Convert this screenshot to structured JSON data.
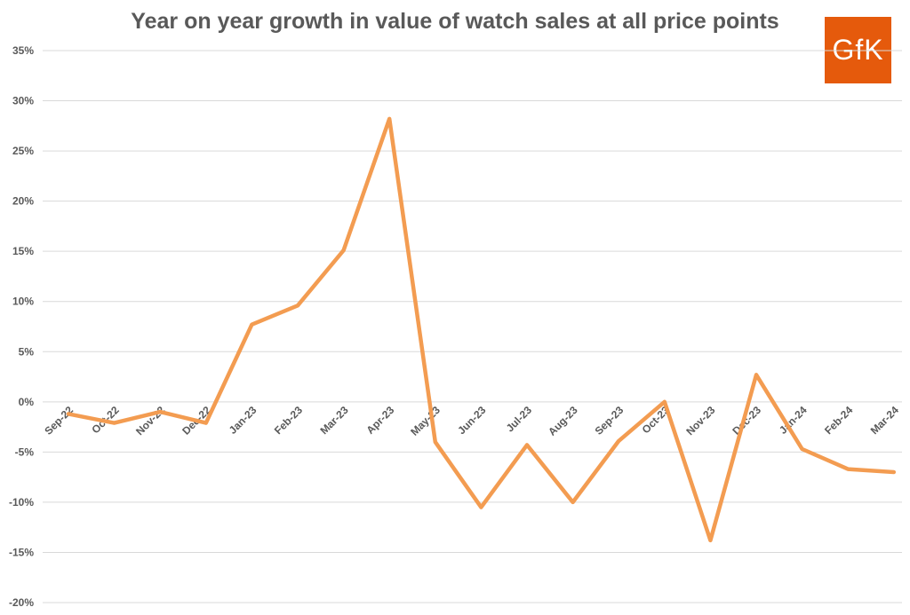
{
  "chart_data": {
    "type": "line",
    "title": "Year on year growth in value of watch sales at all price points",
    "xlabel": "",
    "ylabel": "",
    "ylim": [
      -20,
      35
    ],
    "yticks": [
      35,
      30,
      25,
      20,
      15,
      10,
      5,
      0,
      -5,
      -10,
      -15,
      -20
    ],
    "ytick_suffix": "%",
    "grid": true,
    "legend": "none",
    "line_color": "#f39c51",
    "categories": [
      "Sep-22",
      "Oct-22",
      "Nov-22",
      "Dec-22",
      "Jan-23",
      "Feb-23",
      "Mar-23",
      "Apr-23",
      "May-23",
      "Jun-23",
      "Jul-23",
      "Aug-23",
      "Sep-23",
      "Oct-23",
      "Nov-23",
      "Dec-23",
      "Jan-24",
      "Feb-24",
      "Mar-24"
    ],
    "series": [
      {
        "values": [
          -1.2,
          -2.1,
          -1.0,
          -2.1,
          7.7,
          9.6,
          15.1,
          28.2,
          -4.0,
          -10.5,
          -4.3,
          -10.0,
          -3.9,
          0.0,
          -13.8,
          2.7,
          -4.7,
          -6.7,
          -7.0
        ]
      }
    ]
  },
  "logo": {
    "text": "GfK",
    "color": "#e55a0c"
  }
}
